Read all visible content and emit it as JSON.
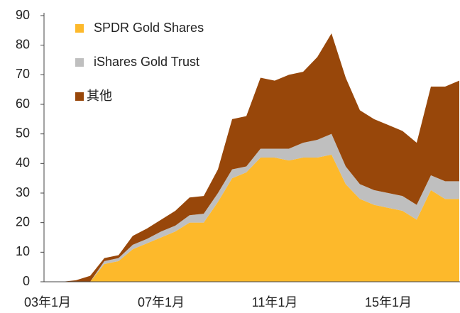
{
  "chart_data": {
    "type": "stacked_area",
    "categories": [
      "03年1月",
      null,
      null,
      null,
      null,
      null,
      null,
      null,
      "07年1月",
      null,
      null,
      null,
      null,
      null,
      null,
      null,
      "11年1月",
      null,
      null,
      null,
      null,
      null,
      null,
      null,
      "15年1月",
      null,
      null,
      null,
      null,
      null
    ],
    "series": [
      {
        "name": "SPDR Gold Shares",
        "color": "#fdb92b",
        "values": [
          0,
          0,
          0,
          0,
          6,
          7,
          11,
          13,
          15,
          17,
          20,
          20,
          27,
          35,
          37,
          42,
          42,
          41,
          42,
          42,
          43,
          33,
          28,
          26,
          25,
          24,
          21,
          31,
          28,
          28
        ]
      },
      {
        "name": "iShares Gold Trust",
        "color": "#bfbfbf",
        "values": [
          0,
          0,
          0,
          0,
          1,
          1,
          1.5,
          1.5,
          2,
          2,
          2.5,
          3,
          3,
          3,
          2,
          3,
          3,
          4,
          5,
          6,
          7,
          6,
          5,
          5,
          5,
          5,
          5,
          5,
          6,
          6
        ]
      },
      {
        "name": "其他",
        "color": "#98470a",
        "values": [
          0,
          0,
          0.5,
          2,
          1,
          1,
          3,
          3.5,
          4,
          5,
          6,
          6,
          8,
          17,
          17,
          24,
          23,
          25,
          24,
          28,
          34,
          30,
          25,
          24,
          23,
          22,
          21,
          30,
          32,
          34
        ]
      }
    ],
    "ylim": [
      0,
      90
    ],
    "yticks": [
      0,
      10,
      20,
      30,
      40,
      50,
      60,
      70,
      80,
      90
    ],
    "legend": "upper-left"
  }
}
